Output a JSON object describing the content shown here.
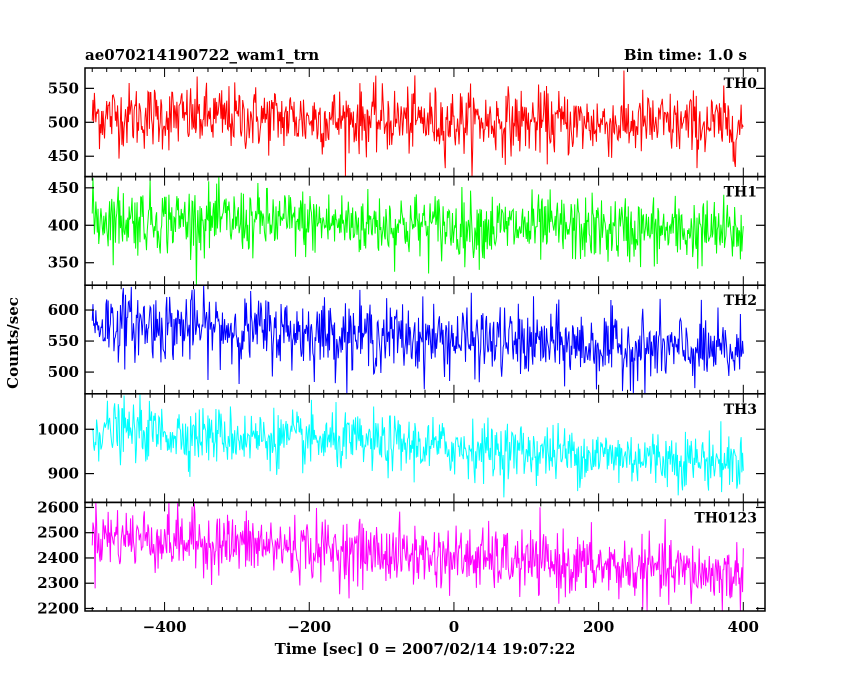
{
  "header": {
    "title": "ae070214190722_wam1_trn",
    "bin_time": "Bin time: 1.0 s"
  },
  "chart_data": {
    "type": "line",
    "title": "ae070214190722_wam1_trn",
    "subtitle": "Bin time: 1.0 s",
    "xlabel": "Time [sec] 0 = 2007/02/14 19:07:22",
    "ylabel": "Counts/sec",
    "xlim": [
      -510,
      430
    ],
    "x_ticks": [
      -400,
      -200,
      0,
      200,
      400
    ],
    "x_range": [
      -500,
      400
    ],
    "x_step": 1,
    "grid": false,
    "panels": [
      {
        "name": "TH0",
        "color": "#ff0000",
        "ylim": [
          420,
          580
        ],
        "yticks": [
          450,
          500,
          550
        ],
        "start": 510,
        "end": 495,
        "noise": 24,
        "ymin_clip": 420,
        "ymax_clip": 580
      },
      {
        "name": "TH1",
        "color": "#00ff00",
        "ylim": [
          320,
          465
        ],
        "yticks": [
          350,
          400,
          450
        ],
        "start": 410,
        "end": 390,
        "noise": 22,
        "ymin_clip": 320,
        "ymax_clip": 465
      },
      {
        "name": "TH2",
        "color": "#0000ff",
        "ylim": [
          465,
          640
        ],
        "yticks": [
          500,
          550,
          600
        ],
        "start": 580,
        "end": 530,
        "noise": 28,
        "ymin_clip": 465,
        "ymax_clip": 640
      },
      {
        "name": "TH3",
        "color": "#00ffff",
        "ylim": [
          835,
          1080
        ],
        "yticks": [
          900,
          1000
        ],
        "start": 1000,
        "end": 925,
        "noise": 32,
        "ymin_clip": 835,
        "ymax_clip": 1080
      },
      {
        "name": "TH0123",
        "color": "#ff00ff",
        "ylim": [
          2190,
          2620
        ],
        "yticks": [
          2200,
          2300,
          2400,
          2500,
          2600
        ],
        "start": 2490,
        "end": 2330,
        "noise": 62,
        "ymin_clip": 2190,
        "ymax_clip": 2620
      }
    ]
  }
}
